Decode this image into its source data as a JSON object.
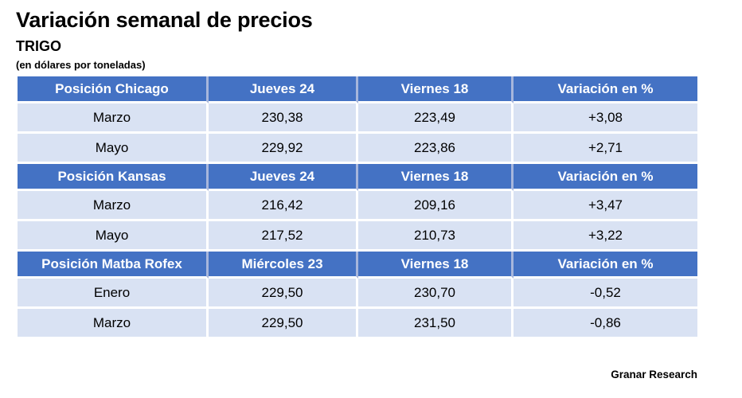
{
  "chart_data": {
    "type": "table",
    "title": "Variación semanal de precios",
    "subtitle": "TRIGO",
    "units": "(en dólares por toneladas)",
    "source": "Granar Research",
    "sections": [
      {
        "header": [
          "Posición Chicago",
          "Jueves 24",
          "Viernes 18",
          "Variación en %"
        ],
        "rows": [
          [
            "Marzo",
            "230,38",
            "223,49",
            "+3,08"
          ],
          [
            "Mayo",
            "229,92",
            "223,86",
            "+2,71"
          ]
        ]
      },
      {
        "header": [
          "Posición Kansas",
          "Jueves 24",
          "Viernes 18",
          "Variación en %"
        ],
        "rows": [
          [
            "Marzo",
            "216,42",
            "209,16",
            "+3,47"
          ],
          [
            "Mayo",
            "217,52",
            "210,73",
            "+3,22"
          ]
        ]
      },
      {
        "header": [
          "Posición Matba Rofex",
          "Miércoles 23",
          "Viernes 18",
          "Variación en %"
        ],
        "rows": [
          [
            "Enero",
            "229,50",
            "230,70",
            "-0,52"
          ],
          [
            "Marzo",
            "229,50",
            "231,50",
            "-0,86"
          ]
        ]
      }
    ]
  },
  "colors": {
    "header_bg": "#4472C4",
    "header_text": "#FFFFFF",
    "row_bg": "#D9E2F3",
    "header_divider": "#A7B6DC",
    "row_divider": "#FFFFFF"
  }
}
